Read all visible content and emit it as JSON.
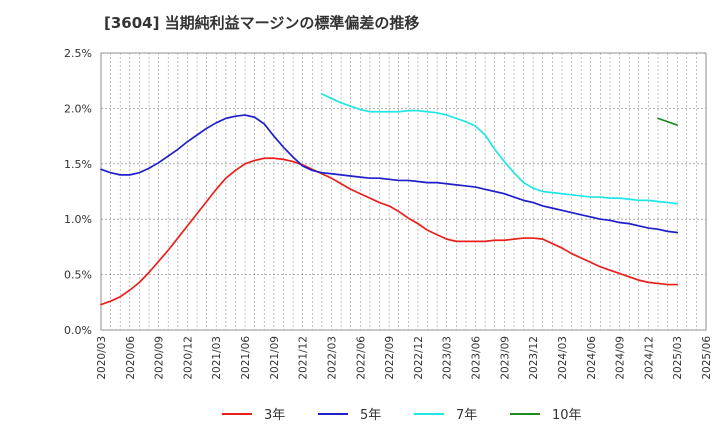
{
  "chart_data": {
    "type": "line",
    "title": "[3604]  当期純利益マージンの標準偏差の推移",
    "xlabel": "",
    "ylabel": "",
    "ylim": [
      0,
      0.025
    ],
    "y_ticks": [
      {
        "value": 0.0,
        "label": "0.0%"
      },
      {
        "value": 0.005,
        "label": "0.5%"
      },
      {
        "value": 0.01,
        "label": "1.0%"
      },
      {
        "value": 0.015,
        "label": "1.5%"
      },
      {
        "value": 0.02,
        "label": "2.0%"
      },
      {
        "value": 0.025,
        "label": "2.5%"
      }
    ],
    "x_tick_labels": [
      "2020/03",
      "2020/06",
      "2020/09",
      "2020/12",
      "2021/03",
      "2021/06",
      "2021/09",
      "2021/12",
      "2022/03",
      "2022/06",
      "2022/09",
      "2022/12",
      "2023/03",
      "2023/06",
      "2023/09",
      "2023/12",
      "2024/03",
      "2024/06",
      "2024/09",
      "2024/12",
      "2025/03",
      "2025/06"
    ],
    "grid": true,
    "legend_position": "bottom",
    "series": [
      {
        "name": "3年",
        "color": "#e8201c",
        "points": [
          [
            "2020/03",
            0.0023
          ],
          [
            "2020/04",
            0.0026
          ],
          [
            "2020/05",
            0.003
          ],
          [
            "2020/06",
            0.0036
          ],
          [
            "2020/07",
            0.0043
          ],
          [
            "2020/08",
            0.0052
          ],
          [
            "2020/09",
            0.0062
          ],
          [
            "2020/10",
            0.0072
          ],
          [
            "2020/11",
            0.0083
          ],
          [
            "2020/12",
            0.0094
          ],
          [
            "2021/01",
            0.0105
          ],
          [
            "2021/02",
            0.0116
          ],
          [
            "2021/03",
            0.0127
          ],
          [
            "2021/04",
            0.0137
          ],
          [
            "2021/05",
            0.0144
          ],
          [
            "2021/06",
            0.015
          ],
          [
            "2021/07",
            0.0153
          ],
          [
            "2021/08",
            0.0155
          ],
          [
            "2021/09",
            0.0155
          ],
          [
            "2021/10",
            0.0154
          ],
          [
            "2021/11",
            0.0152
          ],
          [
            "2021/12",
            0.0149
          ],
          [
            "2022/01",
            0.0145
          ],
          [
            "2022/02",
            0.0141
          ],
          [
            "2022/03",
            0.0137
          ],
          [
            "2022/04",
            0.0132
          ],
          [
            "2022/05",
            0.0127
          ],
          [
            "2022/06",
            0.0123
          ],
          [
            "2022/07",
            0.0119
          ],
          [
            "2022/08",
            0.0115
          ],
          [
            "2022/09",
            0.0112
          ],
          [
            "2022/10",
            0.0107
          ],
          [
            "2022/11",
            0.0101
          ],
          [
            "2022/12",
            0.0096
          ],
          [
            "2023/01",
            0.009
          ],
          [
            "2023/02",
            0.0086
          ],
          [
            "2023/03",
            0.0082
          ],
          [
            "2023/04",
            0.008
          ],
          [
            "2023/05",
            0.008
          ],
          [
            "2023/06",
            0.008
          ],
          [
            "2023/07",
            0.008
          ],
          [
            "2023/08",
            0.0081
          ],
          [
            "2023/09",
            0.0081
          ],
          [
            "2023/10",
            0.0082
          ],
          [
            "2023/11",
            0.0083
          ],
          [
            "2023/12",
            0.0083
          ],
          [
            "2024/01",
            0.0082
          ],
          [
            "2024/02",
            0.0078
          ],
          [
            "2024/03",
            0.0074
          ],
          [
            "2024/04",
            0.0069
          ],
          [
            "2024/05",
            0.0065
          ],
          [
            "2024/06",
            0.0061
          ],
          [
            "2024/07",
            0.0057
          ],
          [
            "2024/08",
            0.0054
          ],
          [
            "2024/09",
            0.0051
          ],
          [
            "2024/10",
            0.0048
          ],
          [
            "2024/11",
            0.0045
          ],
          [
            "2024/12",
            0.0043
          ],
          [
            "2025/01",
            0.0042
          ],
          [
            "2025/02",
            0.0041
          ],
          [
            "2025/03",
            0.0041
          ]
        ]
      },
      {
        "name": "5年",
        "color": "#1f1fcc",
        "points": [
          [
            "2020/03",
            0.0145
          ],
          [
            "2020/04",
            0.0142
          ],
          [
            "2020/05",
            0.014
          ],
          [
            "2020/06",
            0.014
          ],
          [
            "2020/07",
            0.0142
          ],
          [
            "2020/08",
            0.0146
          ],
          [
            "2020/09",
            0.0151
          ],
          [
            "2020/10",
            0.0157
          ],
          [
            "2020/11",
            0.0163
          ],
          [
            "2020/12",
            0.017
          ],
          [
            "2021/01",
            0.0176
          ],
          [
            "2021/02",
            0.0182
          ],
          [
            "2021/03",
            0.0187
          ],
          [
            "2021/04",
            0.0191
          ],
          [
            "2021/05",
            0.0193
          ],
          [
            "2021/06",
            0.0194
          ],
          [
            "2021/07",
            0.0192
          ],
          [
            "2021/08",
            0.0186
          ],
          [
            "2021/09",
            0.0175
          ],
          [
            "2021/10",
            0.0165
          ],
          [
            "2021/11",
            0.0156
          ],
          [
            "2021/12",
            0.0148
          ],
          [
            "2022/01",
            0.0144
          ],
          [
            "2022/02",
            0.0142
          ],
          [
            "2022/03",
            0.0141
          ],
          [
            "2022/04",
            0.014
          ],
          [
            "2022/05",
            0.0139
          ],
          [
            "2022/06",
            0.0138
          ],
          [
            "2022/07",
            0.0137
          ],
          [
            "2022/08",
            0.0137
          ],
          [
            "2022/09",
            0.0136
          ],
          [
            "2022/10",
            0.0135
          ],
          [
            "2022/11",
            0.0135
          ],
          [
            "2022/12",
            0.0134
          ],
          [
            "2023/01",
            0.0133
          ],
          [
            "2023/02",
            0.0133
          ],
          [
            "2023/03",
            0.0132
          ],
          [
            "2023/04",
            0.0131
          ],
          [
            "2023/05",
            0.013
          ],
          [
            "2023/06",
            0.0129
          ],
          [
            "2023/07",
            0.0127
          ],
          [
            "2023/08",
            0.0125
          ],
          [
            "2023/09",
            0.0123
          ],
          [
            "2023/10",
            0.012
          ],
          [
            "2023/11",
            0.0117
          ],
          [
            "2023/12",
            0.0115
          ],
          [
            "2024/01",
            0.0112
          ],
          [
            "2024/02",
            0.011
          ],
          [
            "2024/03",
            0.0108
          ],
          [
            "2024/04",
            0.0106
          ],
          [
            "2024/05",
            0.0104
          ],
          [
            "2024/06",
            0.0102
          ],
          [
            "2024/07",
            0.01
          ],
          [
            "2024/08",
            0.0099
          ],
          [
            "2024/09",
            0.0097
          ],
          [
            "2024/10",
            0.0096
          ],
          [
            "2024/11",
            0.0094
          ],
          [
            "2024/12",
            0.0092
          ],
          [
            "2025/01",
            0.0091
          ],
          [
            "2025/02",
            0.0089
          ],
          [
            "2025/03",
            0.0088
          ]
        ]
      },
      {
        "name": "7年",
        "color": "#22e5e5",
        "points": [
          [
            "2022/02",
            0.0213
          ],
          [
            "2022/03",
            0.0209
          ],
          [
            "2022/04",
            0.0205
          ],
          [
            "2022/05",
            0.0202
          ],
          [
            "2022/06",
            0.0199
          ],
          [
            "2022/07",
            0.0197
          ],
          [
            "2022/08",
            0.0197
          ],
          [
            "2022/09",
            0.0197
          ],
          [
            "2022/10",
            0.0197
          ],
          [
            "2022/11",
            0.0198
          ],
          [
            "2022/12",
            0.0198
          ],
          [
            "2023/01",
            0.0197
          ],
          [
            "2023/02",
            0.0196
          ],
          [
            "2023/03",
            0.0194
          ],
          [
            "2023/04",
            0.0191
          ],
          [
            "2023/05",
            0.0188
          ],
          [
            "2023/06",
            0.0184
          ],
          [
            "2023/07",
            0.0176
          ],
          [
            "2023/08",
            0.0163
          ],
          [
            "2023/09",
            0.0152
          ],
          [
            "2023/10",
            0.0142
          ],
          [
            "2023/11",
            0.0133
          ],
          [
            "2023/12",
            0.0128
          ],
          [
            "2024/01",
            0.0125
          ],
          [
            "2024/02",
            0.0124
          ],
          [
            "2024/03",
            0.0123
          ],
          [
            "2024/04",
            0.0122
          ],
          [
            "2024/05",
            0.0121
          ],
          [
            "2024/06",
            0.012
          ],
          [
            "2024/07",
            0.012
          ],
          [
            "2024/08",
            0.0119
          ],
          [
            "2024/09",
            0.0119
          ],
          [
            "2024/10",
            0.0118
          ],
          [
            "2024/11",
            0.0117
          ],
          [
            "2024/12",
            0.0117
          ],
          [
            "2025/01",
            0.0116
          ],
          [
            "2025/02",
            0.0115
          ],
          [
            "2025/03",
            0.0114
          ]
        ]
      },
      {
        "name": "10年",
        "color": "#1f8a1f",
        "points": [
          [
            "2025/01",
            0.0191
          ],
          [
            "2025/02",
            0.0188
          ],
          [
            "2025/03",
            0.0185
          ]
        ]
      }
    ]
  }
}
